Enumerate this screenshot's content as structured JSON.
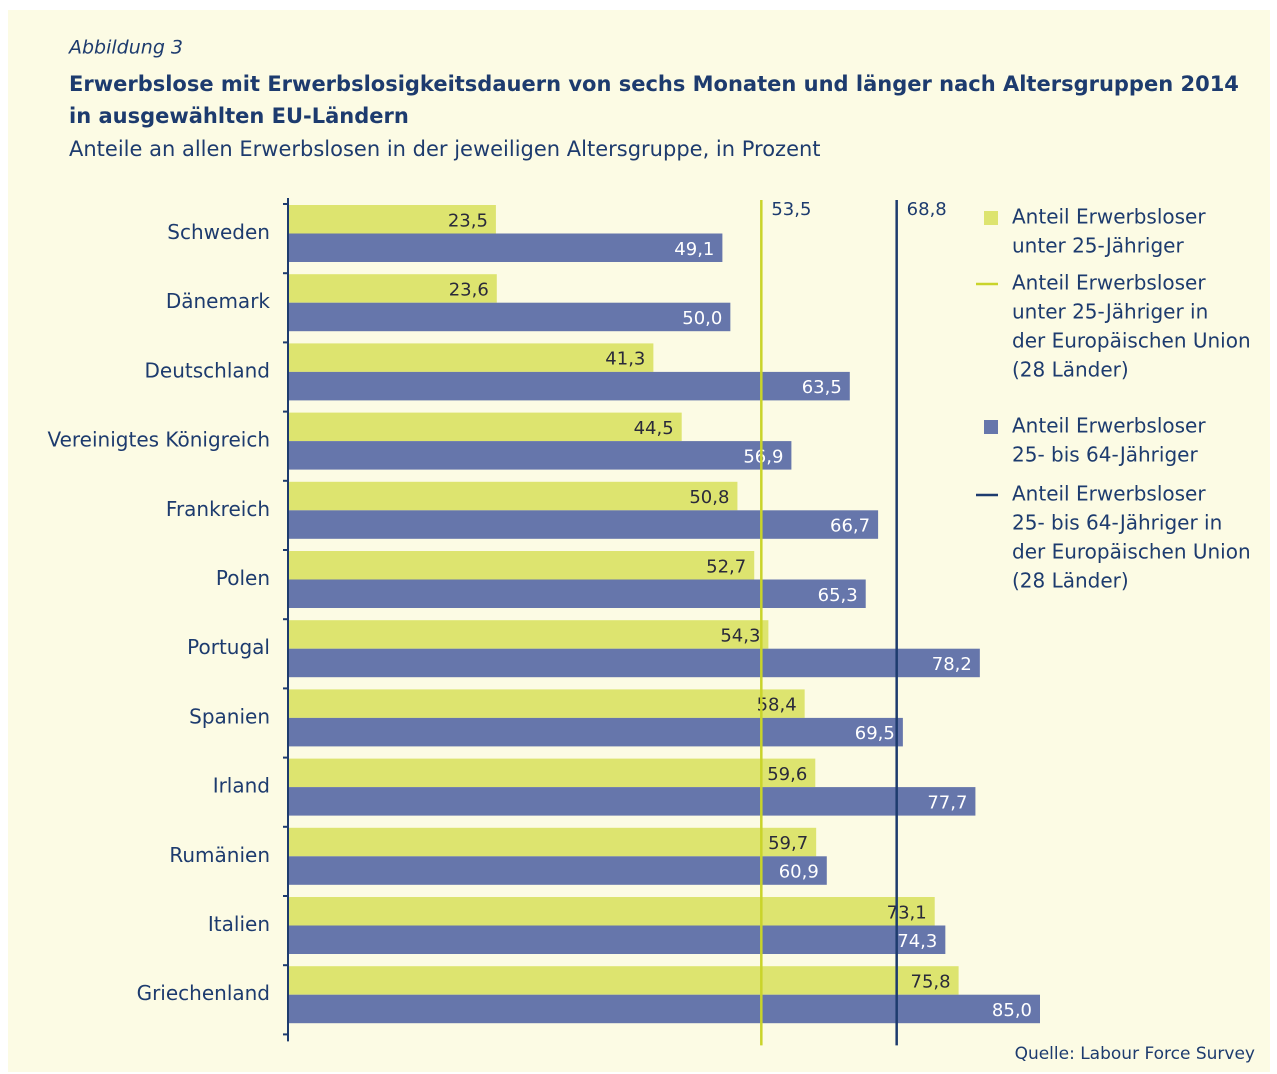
{
  "chart_data": {
    "type": "bar",
    "orientation": "horizontal",
    "figure_label": "Abbildung 3",
    "title": [
      "Erwerbslose mit Erwerbslosigkeitsdauern von sechs Monaten und länger nach Altersgruppen 2014",
      "in ausgewählten EU-Ländern"
    ],
    "subtitle": "Anteile an allen Erwerbslosen in der jeweiligen Altersgruppe, in Prozent",
    "source": "Quelle: Labour Force Survey",
    "categories": [
      "Schweden",
      "Dänemark",
      "Deutschland",
      "Vereinigtes Königreich",
      "Frankreich",
      "Polen",
      "Portugal",
      "Spanien",
      "Irland",
      "Rumänien",
      "Italien",
      "Griechenland"
    ],
    "series": [
      {
        "name": [
          "Anteil Erwerbsloser",
          "unter 25-Jähriger"
        ],
        "color": "#dde46f",
        "values": [
          23.5,
          23.6,
          41.3,
          44.5,
          50.8,
          52.7,
          54.3,
          58.4,
          59.6,
          59.7,
          73.1,
          75.8
        ],
        "value_labels": [
          "23,5",
          "23,6",
          "41,3",
          "44,5",
          "50,8",
          "52,7",
          "54,3",
          "58,4",
          "59,6",
          "59,7",
          "73,1",
          "75,8"
        ]
      },
      {
        "name": [
          "Anteil Erwerbsloser",
          "25- bis 64-Jähriger"
        ],
        "color": "#6676ab",
        "values": [
          49.1,
          50.0,
          63.5,
          56.9,
          66.7,
          65.3,
          78.2,
          69.5,
          77.7,
          60.9,
          74.3,
          85.0
        ],
        "value_labels": [
          "49,1",
          "50,0",
          "63,5",
          "56,9",
          "66,7",
          "65,3",
          "78,2",
          "69,5",
          "77,7",
          "60,9",
          "74,3",
          "85,0"
        ]
      }
    ],
    "reference_lines": [
      {
        "name": [
          "Anteil Erwerbsloser",
          "unter 25-Jähriger in",
          "der Europäischen Union",
          "(28 Länder)"
        ],
        "color": "#c9d42a",
        "value": 53.5,
        "label": "53,5"
      },
      {
        "name": [
          "Anteil Erwerbsloser",
          "25- bis 64-Jähriger in",
          "der Europäischen Union",
          "(28 Länder)"
        ],
        "color": "#1d3b6e",
        "value": 68.8,
        "label": "68,8"
      }
    ],
    "xlim": [
      0,
      85
    ]
  }
}
